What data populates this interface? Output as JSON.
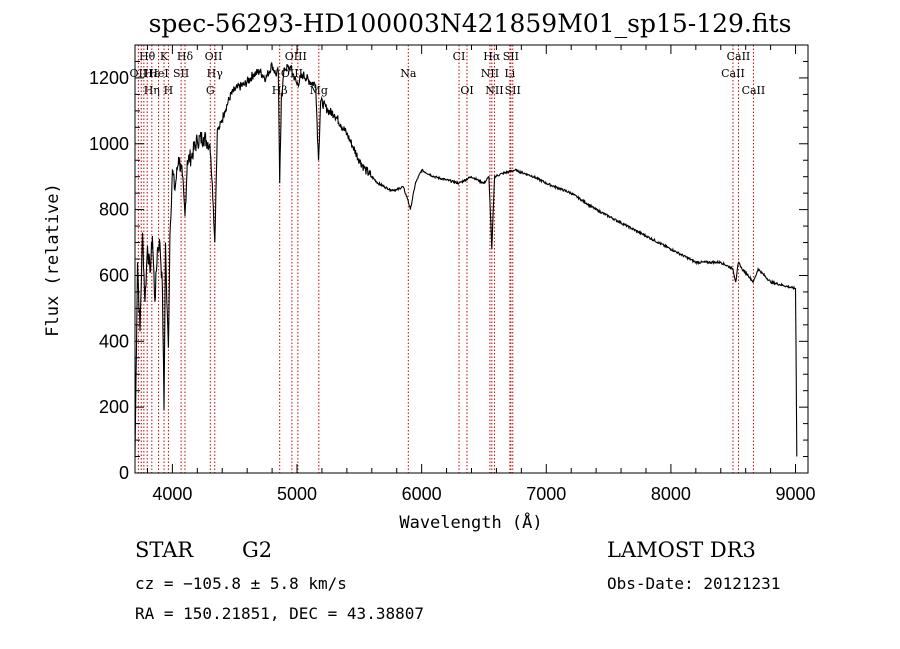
{
  "chart_data": {
    "type": "line",
    "title": "spec-56293-HD100003N421859M01_sp15-129.fits",
    "xlabel": "Wavelength (Å)",
    "ylabel": "Flux (relative)",
    "xlim": [
      3700,
      9100
    ],
    "ylim": [
      0,
      1300
    ],
    "xticks": [
      4000,
      5000,
      6000,
      7000,
      8000,
      9000
    ],
    "yticks": [
      0,
      200,
      400,
      600,
      800,
      1000,
      1200
    ],
    "series": [
      {
        "name": "flux",
        "x": [
          3700,
          3720,
          3740,
          3760,
          3780,
          3800,
          3820,
          3840,
          3860,
          3880,
          3900,
          3920,
          3933,
          3945,
          3955,
          3968,
          3980,
          4000,
          4020,
          4050,
          4080,
          4101,
          4120,
          4150,
          4200,
          4250,
          4300,
          4320,
          4340,
          4360,
          4380,
          4420,
          4470,
          4520,
          4580,
          4650,
          4700,
          4750,
          4800,
          4830,
          4850,
          4861,
          4875,
          4900,
          4950,
          5000,
          5050,
          5100,
          5150,
          5172,
          5190,
          5250,
          5300,
          5350,
          5400,
          5450,
          5500,
          5550,
          5600,
          5650,
          5700,
          5750,
          5800,
          5850,
          5890,
          5910,
          5950,
          6000,
          6100,
          6200,
          6300,
          6400,
          6500,
          6540,
          6563,
          6585,
          6650,
          6750,
          6900,
          7000,
          7200,
          7400,
          7600,
          7800,
          8000,
          8200,
          8400,
          8498,
          8520,
          8542,
          8570,
          8620,
          8662,
          8700,
          8800,
          8900,
          9000,
          9010
        ],
        "values": [
          50,
          640,
          430,
          730,
          520,
          690,
          610,
          720,
          520,
          680,
          700,
          560,
          190,
          700,
          520,
          380,
          720,
          920,
          860,
          960,
          900,
          780,
          950,
          960,
          1010,
          1020,
          1000,
          880,
          700,
          1040,
          1050,
          1100,
          1150,
          1170,
          1180,
          1210,
          1220,
          1200,
          1240,
          1210,
          1220,
          880,
          1150,
          1230,
          1230,
          1180,
          1210,
          1190,
          1180,
          950,
          1130,
          1100,
          1090,
          1060,
          1030,
          990,
          950,
          920,
          900,
          880,
          870,
          860,
          860,
          870,
          830,
          800,
          880,
          920,
          900,
          890,
          880,
          900,
          880,
          900,
          680,
          900,
          910,
          920,
          900,
          880,
          850,
          800,
          760,
          720,
          680,
          640,
          640,
          620,
          580,
          640,
          620,
          600,
          580,
          620,
          580,
          570,
          560,
          50
        ]
      }
    ],
    "line_labels": [
      {
        "label": "Hθ",
        "x": 3798,
        "row": 0
      },
      {
        "label": "K",
        "x": 3933,
        "row": 0
      },
      {
        "label": "Hδ",
        "x": 4101,
        "row": 0
      },
      {
        "label": "OII",
        "x": 4330,
        "row": 0
      },
      {
        "label": "OIII",
        "x": 4990,
        "row": 0
      },
      {
        "label": "CI",
        "x": 6300,
        "row": 0
      },
      {
        "label": "Hα",
        "x": 6563,
        "row": 0
      },
      {
        "label": "SII",
        "x": 6716,
        "row": 0
      },
      {
        "label": "CaII",
        "x": 8542,
        "row": 0
      },
      {
        "label": "OII",
        "x": 3727,
        "row": 1
      },
      {
        "label": "Hε",
        "x": 3835,
        "row": 1
      },
      {
        "label": "HeI",
        "x": 3889,
        "row": 1
      },
      {
        "label": "SII",
        "x": 4070,
        "row": 1
      },
      {
        "label": "Hγ",
        "x": 4340,
        "row": 1
      },
      {
        "label": "OIII",
        "x": 4959,
        "row": 1
      },
      {
        "label": "Na",
        "x": 5893,
        "row": 1
      },
      {
        "label": "NII",
        "x": 6548,
        "row": 1
      },
      {
        "label": "Li",
        "x": 6708,
        "row": 1
      },
      {
        "label": "CaII",
        "x": 8498,
        "row": 1
      },
      {
        "label": "Hη",
        "x": 3835,
        "row": 2
      },
      {
        "label": "H",
        "x": 3968,
        "row": 2
      },
      {
        "label": "G",
        "x": 4304,
        "row": 2
      },
      {
        "label": "Hβ",
        "x": 4861,
        "row": 2
      },
      {
        "label": "Mg",
        "x": 5175,
        "row": 2
      },
      {
        "label": "OI",
        "x": 6364,
        "row": 2
      },
      {
        "label": "NII",
        "x": 6584,
        "row": 2
      },
      {
        "label": "SII",
        "x": 6731,
        "row": 2
      },
      {
        "label": "CaII",
        "x": 8662,
        "row": 2
      }
    ],
    "line_positions": [
      3727,
      3750,
      3771,
      3798,
      3835,
      3889,
      3933,
      3968,
      4070,
      4101,
      4304,
      4340,
      4861,
      4959,
      5007,
      5175,
      5893,
      6300,
      6364,
      6548,
      6563,
      6584,
      6708,
      6716,
      6731,
      8498,
      8542,
      8662
    ],
    "line_color": "#cc0000"
  },
  "info": {
    "object_type": "STAR",
    "subclass": "G2",
    "survey": "LAMOST DR3",
    "redshift": "cz = −105.8 ± 5.8 km/s",
    "obs_date": "Obs-Date: 20121231",
    "coords": "RA = 150.21851, DEC =  43.38807"
  }
}
